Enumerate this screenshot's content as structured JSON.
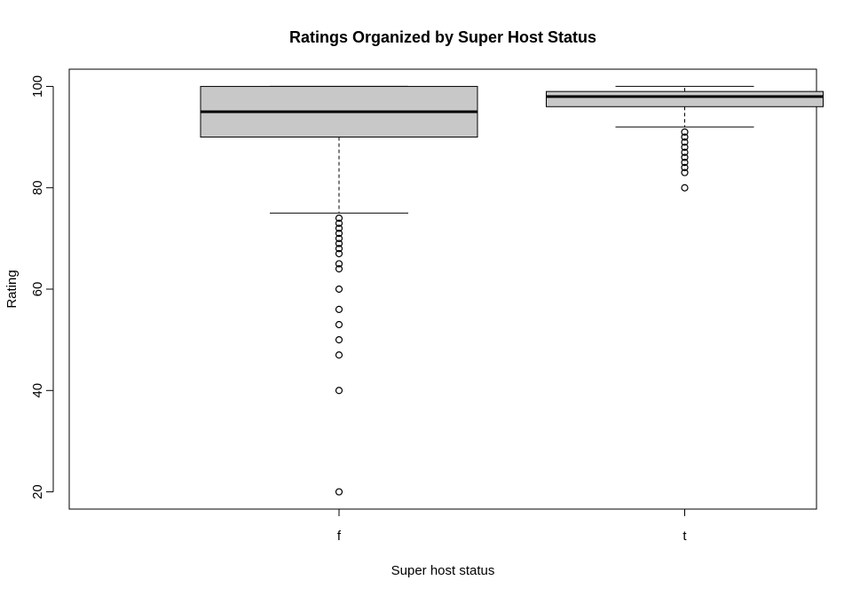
{
  "chart_data": {
    "type": "boxplot",
    "title": "Ratings Organized by Super Host Status",
    "xlabel": "Super host status",
    "ylabel": "Rating",
    "ylim": [
      16.6,
      103.4
    ],
    "yticks": [
      20,
      40,
      60,
      80,
      100
    ],
    "grid": false,
    "box_color": "#c8c8c8",
    "categories": [
      "f",
      "t"
    ],
    "boxes": [
      {
        "category": "f",
        "whisker_low": 75,
        "q1": 90,
        "median": 95,
        "q3": 100,
        "whisker_high": 100,
        "outliers": [
          74,
          73,
          72,
          71,
          70,
          69,
          68,
          67,
          65,
          64,
          60,
          56,
          53,
          50,
          47,
          40,
          20
        ]
      },
      {
        "category": "t",
        "whisker_low": 92,
        "q1": 96,
        "median": 98,
        "q3": 99,
        "whisker_high": 100,
        "outliers": [
          91,
          90,
          89,
          88,
          87,
          86,
          85,
          84,
          83,
          80
        ]
      }
    ]
  }
}
